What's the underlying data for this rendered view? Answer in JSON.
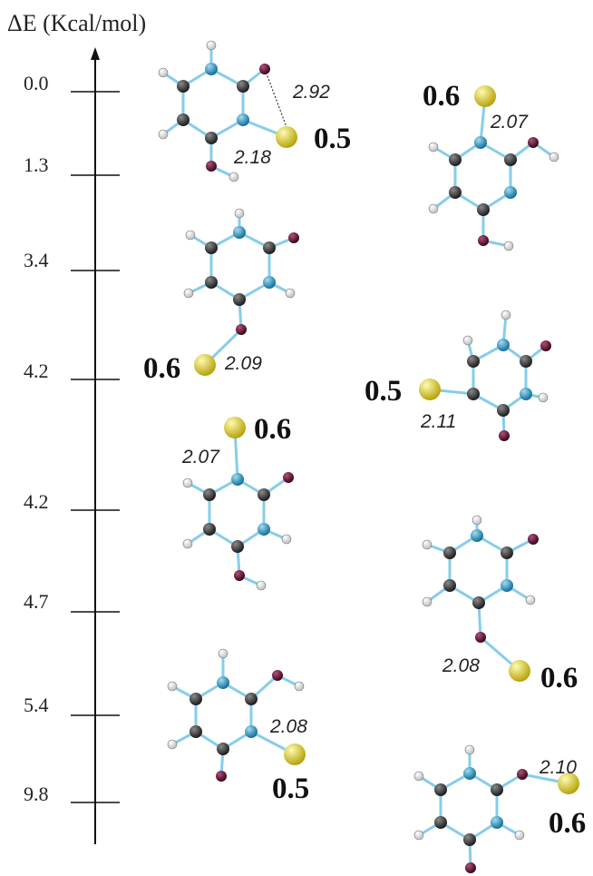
{
  "axis": {
    "title": "ΔE (Kcal/mol)",
    "ticks": [
      "0.0",
      "1.3",
      "3.4",
      "4.2",
      "4.2",
      "4.7",
      "5.4",
      "9.8"
    ]
  },
  "structures": [
    {
      "id": "s1",
      "charge": "0.5",
      "bonds": [
        "2.92",
        "2.18"
      ]
    },
    {
      "id": "s2",
      "charge": "0.6",
      "bonds": [
        "2.07"
      ]
    },
    {
      "id": "s3",
      "charge": "0.6",
      "bonds": [
        "2.09"
      ]
    },
    {
      "id": "s4",
      "charge": "0.5",
      "bonds": [
        "2.11"
      ]
    },
    {
      "id": "s5",
      "charge": "0.6",
      "bonds": [
        "2.07"
      ]
    },
    {
      "id": "s6",
      "charge": "0.6",
      "bonds": [
        "2.08"
      ]
    },
    {
      "id": "s7",
      "charge": "0.5",
      "bonds": [
        "2.08"
      ]
    },
    {
      "id": "s8",
      "charge": "0.6",
      "bonds": [
        "2.10"
      ]
    }
  ],
  "colors": {
    "carbon": "#2b2b2b",
    "nitrogen": "#1f8fbf",
    "oxygen": "#6a0f2a",
    "hydrogen": "#ffffff",
    "metal": "#e6d21d",
    "bond": "#86cdea"
  }
}
